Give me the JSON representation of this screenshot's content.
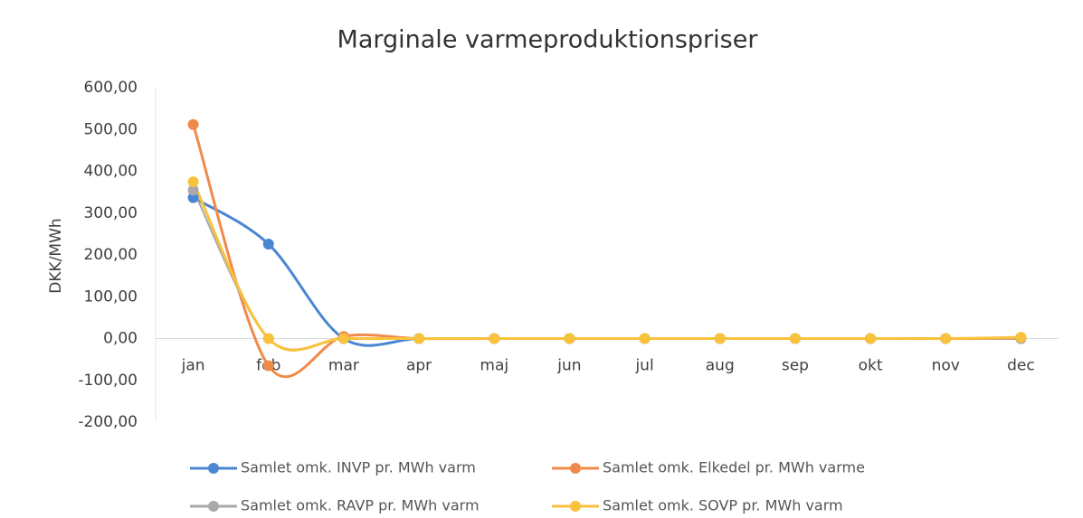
{
  "chart_data": {
    "type": "line",
    "title": "Marginale varmeproduktionspriser",
    "y_label": "DKK/MWh",
    "categories": [
      "jan",
      "feb",
      "mar",
      "apr",
      "maj",
      "jun",
      "jul",
      "aug",
      "sep",
      "okt",
      "nov",
      "dec"
    ],
    "series": [
      {
        "name": "Samlet omk. INVP pr. MWh varm",
        "color": "#4a86d4",
        "values": [
          337,
          226,
          0,
          0,
          0,
          0,
          0,
          0,
          0,
          0,
          0,
          0
        ]
      },
      {
        "name": "Samlet omk. Elkedel pr. MWh varme",
        "color": "#f08a4b",
        "values": [
          512,
          -65,
          5,
          0,
          0,
          0,
          0,
          0,
          0,
          0,
          0,
          0
        ]
      },
      {
        "name": "Samlet omk. RAVP pr. MWh varm",
        "color": "#a9a9a9",
        "values": [
          355,
          0,
          0,
          0,
          0,
          0,
          0,
          0,
          0,
          0,
          0,
          0
        ]
      },
      {
        "name": "Samlet omk. SOVP pr. MWh varm",
        "color": "#f9c23c",
        "values": [
          375,
          0,
          0,
          0,
          0,
          0,
          0,
          0,
          0,
          0,
          0,
          3
        ]
      }
    ],
    "ylim": [
      -200,
      600
    ],
    "yticks": [
      {
        "value": -200,
        "label": "-200,00"
      },
      {
        "value": -100,
        "label": "-100,00"
      },
      {
        "value": 0,
        "label": "0,00"
      },
      {
        "value": 100,
        "label": "100,00"
      },
      {
        "value": 200,
        "label": "200,00"
      },
      {
        "value": 300,
        "label": "300,00"
      },
      {
        "value": 400,
        "label": "400,00"
      },
      {
        "value": 500,
        "label": "500,00"
      },
      {
        "value": 600,
        "label": "600,00"
      }
    ],
    "grid": false
  }
}
